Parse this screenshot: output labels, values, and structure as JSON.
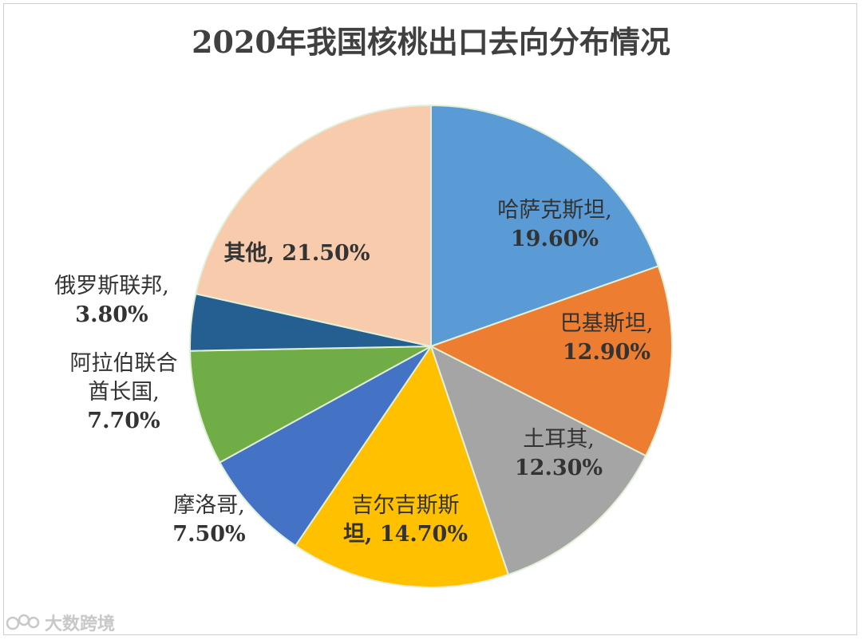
{
  "chart_data": {
    "type": "pie",
    "title": "2020年我国核桃出口去向分布情况",
    "slices": [
      {
        "label_lines": [
          "哈萨克斯坦,",
          "19.60%"
        ],
        "value": 19.6,
        "color": "#5b9bd5"
      },
      {
        "label_lines": [
          "巴基斯坦,",
          "12.90%"
        ],
        "value": 12.9,
        "color": "#ed7d31"
      },
      {
        "label_lines": [
          "土耳其,",
          "12.30%"
        ],
        "value": 12.3,
        "color": "#a5a5a5"
      },
      {
        "label_lines": [
          "吉尔吉斯斯",
          "坦, 14.70%"
        ],
        "value": 14.7,
        "color": "#ffc000"
      },
      {
        "label_lines": [
          "摩洛哥,",
          "7.50%"
        ],
        "value": 7.5,
        "color": "#4472c4"
      },
      {
        "label_lines": [
          "阿拉伯联合",
          "酋长国,",
          "7.70%"
        ],
        "value": 7.7,
        "color": "#70ad47"
      },
      {
        "label_lines": [
          "俄罗斯联邦,",
          "3.80%"
        ],
        "value": 3.8,
        "color": "#255e91"
      },
      {
        "label_lines": [
          "其他, 21.50%"
        ],
        "value": 21.5,
        "color": "#f8cbad"
      }
    ],
    "start_angle": "12 o'clock",
    "direction": "clockwise",
    "slice_border_color": "#e2f0d9"
  },
  "watermark": {
    "text": "大数跨境"
  }
}
